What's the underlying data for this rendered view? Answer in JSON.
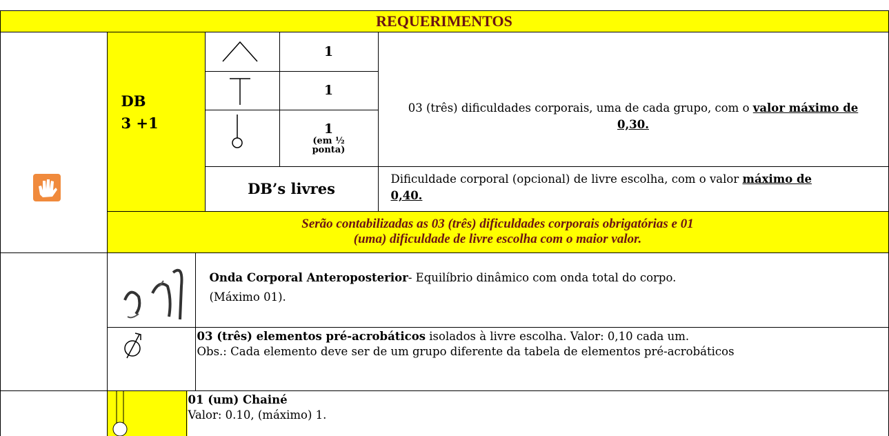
{
  "header": {
    "title": "REQUERIMENTOS"
  },
  "db": {
    "label": "DB",
    "count": "3 +1",
    "rows": [
      {
        "value": "1"
      },
      {
        "value": "1"
      },
      {
        "value": "1",
        "note": "(em ½ ponta)"
      }
    ],
    "description": "03 (três) dificuldades corporais, uma de cada grupo, com o",
    "description_emphasis": "valor máximo de 0,30.",
    "free": {
      "label": "DB’s livres",
      "text": "Dificuldade corporal (opcional) de livre escolha, com o valor",
      "emphasis": "máximo de 0,40."
    },
    "note": "Serão contabilizadas as 03 (três) dificuldades corporais obrigatórias e 01 (uma) dificuldade de livre escolha com o maior valor."
  },
  "elements": [
    {
      "title": "Onda Corporal Anteroposterior",
      "text": "- Equilíbrio dinâmico com onda total do corpo. (Máximo 01)."
    },
    {
      "title": "03 (três) elementos pré-acrobáticos",
      "text": "isolados à livre escolha. Valor: 0,10 cada um.",
      "obs": "Obs.: Cada elemento deve ser de um grupo diferente da tabela de elementos pré-acrobáticos"
    },
    {
      "title": "01 (um) Chainé",
      "text": "Valor: 0.10, (máximo) 1."
    }
  ]
}
